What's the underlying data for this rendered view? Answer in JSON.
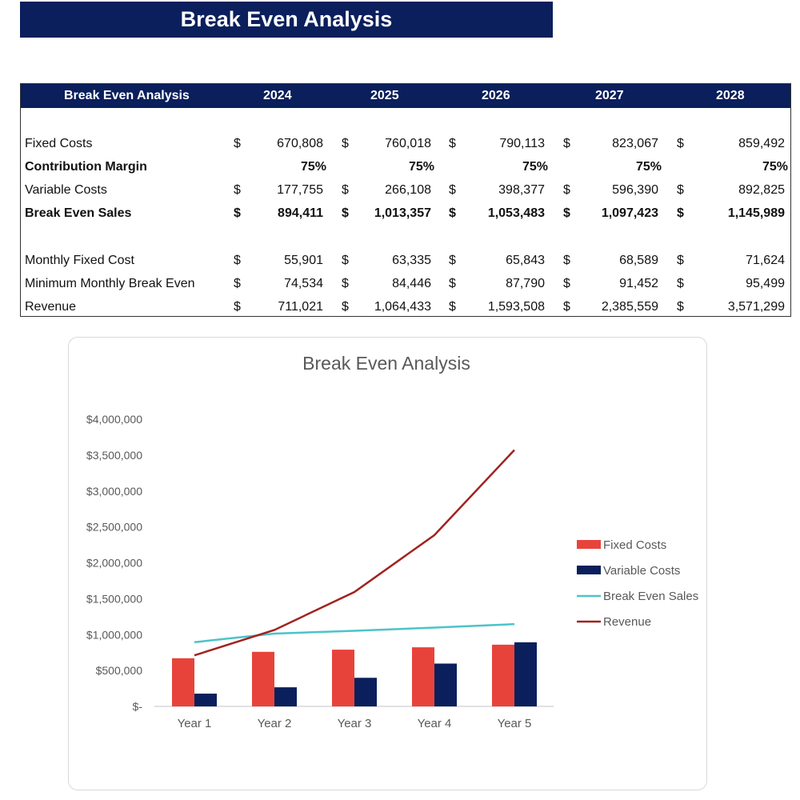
{
  "title": "Break Even Analysis",
  "table": {
    "header": [
      "Break Even Analysis",
      "2024",
      "2025",
      "2026",
      "2027",
      "2028"
    ],
    "rows": [
      {
        "label": "Fixed Costs",
        "bold": false,
        "currency": true,
        "values": [
          "670,808",
          "760,018",
          "790,113",
          "823,067",
          "859,492"
        ],
        "gap": false
      },
      {
        "label": "Contribution Margin",
        "bold": true,
        "currency": false,
        "values": [
          "75%",
          "75%",
          "75%",
          "75%",
          "75%"
        ],
        "gap": false
      },
      {
        "label": "Variable Costs",
        "bold": false,
        "currency": true,
        "values": [
          "177,755",
          "266,108",
          "398,377",
          "596,390",
          "892,825"
        ],
        "gap": false
      },
      {
        "label": "Break Even Sales",
        "bold": true,
        "currency": true,
        "values": [
          "894,411",
          "1,013,357",
          "1,053,483",
          "1,097,423",
          "1,145,989"
        ],
        "gap": false
      },
      {
        "label": "Monthly Fixed Cost",
        "bold": false,
        "currency": true,
        "values": [
          "55,901",
          "63,335",
          "65,843",
          "68,589",
          "71,624"
        ],
        "gap": true
      },
      {
        "label": "Minimum Monthly Break Even",
        "bold": false,
        "currency": true,
        "values": [
          "74,534",
          "84,446",
          "87,790",
          "91,452",
          "95,499"
        ],
        "gap": false
      },
      {
        "label": "Revenue",
        "bold": false,
        "currency": true,
        "values": [
          "711,021",
          "1,064,433",
          "1,593,508",
          "2,385,559",
          "3,571,299"
        ],
        "gap": false
      }
    ],
    "currency_symbol": "$"
  },
  "chart_data": {
    "type": "bar",
    "title": "Break Even Analysis",
    "categories": [
      "Year 1",
      "Year 2",
      "Year 3",
      "Year 4",
      "Year 5"
    ],
    "ylim": [
      0,
      4000000
    ],
    "yticks": [
      0,
      500000,
      1000000,
      1500000,
      2000000,
      2500000,
      3000000,
      3500000,
      4000000
    ],
    "ytick_labels": [
      "$-",
      "$500,000",
      "$1,000,000",
      "$1,500,000",
      "$2,000,000",
      "$2,500,000",
      "$3,000,000",
      "$3,500,000",
      "$4,000,000"
    ],
    "legend_position": "right",
    "series": [
      {
        "name": "Fixed Costs",
        "kind": "bar",
        "color": "#e8433a",
        "values": [
          670808,
          760018,
          790113,
          823067,
          859492
        ]
      },
      {
        "name": "Variable Costs",
        "kind": "bar",
        "color": "#0a1f5c",
        "values": [
          177755,
          266108,
          398377,
          596390,
          892825
        ]
      },
      {
        "name": "Break Even Sales",
        "kind": "line",
        "color": "#4bc4c8",
        "values": [
          894411,
          1013357,
          1053483,
          1097423,
          1145989
        ]
      },
      {
        "name": "Revenue",
        "kind": "line",
        "color": "#a0231f",
        "values": [
          711021,
          1064433,
          1593508,
          2385559,
          3571299
        ]
      }
    ]
  }
}
